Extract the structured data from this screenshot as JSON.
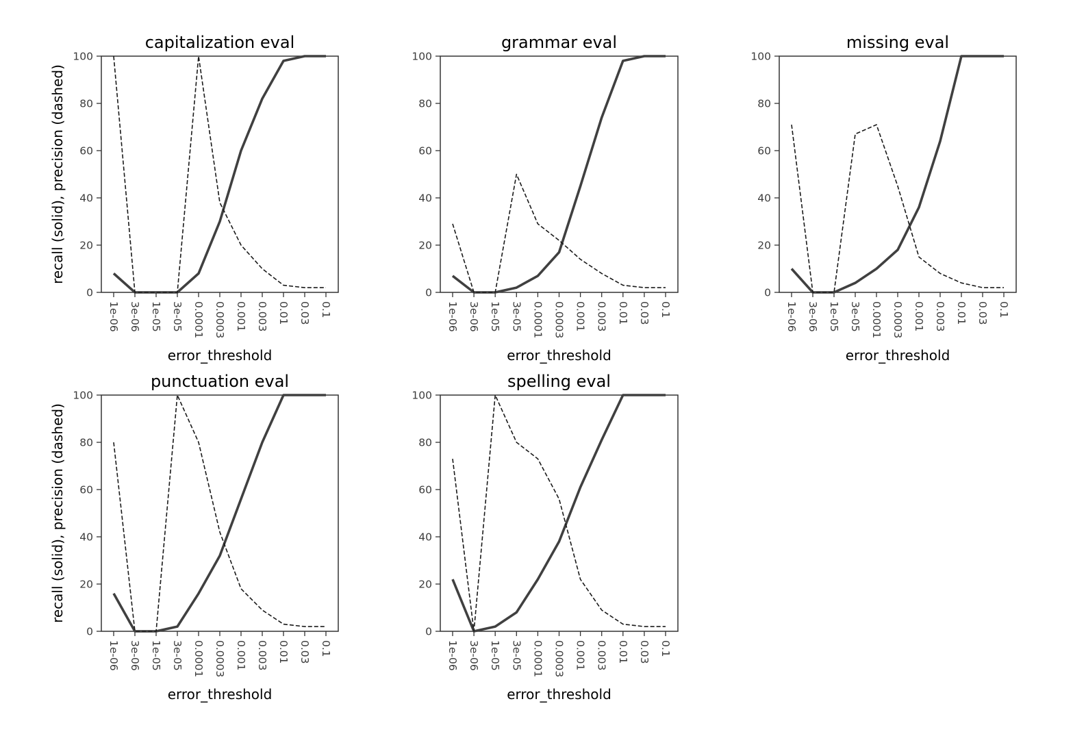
{
  "style": {
    "line_color": "#404040",
    "axis_color": "#333333",
    "tick_text_color": "#3d3d3d",
    "background": "#ffffff"
  },
  "chart_data": [
    {
      "type": "line",
      "title": "capitalization eval",
      "xlabel": "error_threshold",
      "ylabel": "recall (solid), precision (dashed)",
      "categories": [
        "1e-06",
        "3e-06",
        "1e-05",
        "3e-05",
        "0.0001",
        "0.0003",
        "0.001",
        "0.003",
        "0.01",
        "0.03",
        "0.1"
      ],
      "yticks": [
        0,
        20,
        40,
        60,
        80,
        100
      ],
      "ylim": [
        0,
        100
      ],
      "grid": false,
      "series": [
        {
          "style": "solid",
          "values": [
            8,
            0,
            0,
            0,
            8,
            30,
            60,
            82,
            98,
            100,
            100
          ]
        },
        {
          "style": "dashed",
          "values": [
            100,
            0,
            0,
            0,
            100,
            38,
            20,
            10,
            3,
            2,
            2
          ]
        }
      ]
    },
    {
      "type": "line",
      "title": "grammar eval",
      "xlabel": "error_threshold",
      "ylabel": "",
      "categories": [
        "1e-06",
        "3e-06",
        "1e-05",
        "3e-05",
        "0.0001",
        "0.0003",
        "0.001",
        "0.003",
        "0.01",
        "0.03",
        "0.1"
      ],
      "yticks": [
        0,
        20,
        40,
        60,
        80,
        100
      ],
      "ylim": [
        0,
        100
      ],
      "grid": false,
      "series": [
        {
          "style": "solid",
          "values": [
            7,
            0,
            0,
            2,
            7,
            17,
            45,
            74,
            98,
            100,
            100
          ]
        },
        {
          "style": "dashed",
          "values": [
            29,
            0,
            0,
            50,
            29,
            22,
            14,
            8,
            3,
            2,
            2
          ]
        }
      ]
    },
    {
      "type": "line",
      "title": "missing eval",
      "xlabel": "error_threshold",
      "ylabel": "",
      "categories": [
        "1e-06",
        "3e-06",
        "1e-05",
        "3e-05",
        "0.0001",
        "0.0003",
        "0.001",
        "0.003",
        "0.01",
        "0.03",
        "0.1"
      ],
      "yticks": [
        0,
        20,
        40,
        60,
        80,
        100
      ],
      "ylim": [
        0,
        100
      ],
      "grid": false,
      "series": [
        {
          "style": "solid",
          "values": [
            10,
            0,
            0,
            4,
            10,
            18,
            36,
            64,
            100,
            100,
            100
          ]
        },
        {
          "style": "dashed",
          "values": [
            71,
            0,
            0,
            67,
            71,
            45,
            15,
            8,
            4,
            2,
            2
          ]
        }
      ]
    },
    {
      "type": "line",
      "title": "punctuation eval",
      "xlabel": "error_threshold",
      "ylabel": "recall (solid), precision (dashed)",
      "categories": [
        "1e-06",
        "3e-06",
        "1e-05",
        "3e-05",
        "0.0001",
        "0.0003",
        "0.001",
        "0.003",
        "0.01",
        "0.03",
        "0.1"
      ],
      "yticks": [
        0,
        20,
        40,
        60,
        80,
        100
      ],
      "ylim": [
        0,
        100
      ],
      "grid": false,
      "series": [
        {
          "style": "solid",
          "values": [
            16,
            0,
            0,
            2,
            16,
            32,
            56,
            80,
            100,
            100,
            100
          ]
        },
        {
          "style": "dashed",
          "values": [
            80,
            0,
            0,
            100,
            80,
            42,
            18,
            9,
            3,
            2,
            2
          ]
        }
      ]
    },
    {
      "type": "line",
      "title": "spelling eval",
      "xlabel": "error_threshold",
      "ylabel": "",
      "categories": [
        "1e-06",
        "3e-06",
        "1e-05",
        "3e-05",
        "0.0001",
        "0.0003",
        "0.001",
        "0.003",
        "0.01",
        "0.03",
        "0.1"
      ],
      "yticks": [
        0,
        20,
        40,
        60,
        80,
        100
      ],
      "ylim": [
        0,
        100
      ],
      "grid": false,
      "series": [
        {
          "style": "solid",
          "values": [
            22,
            0,
            2,
            8,
            22,
            38,
            61,
            81,
            100,
            100,
            100
          ]
        },
        {
          "style": "dashed",
          "values": [
            73,
            0,
            100,
            80,
            73,
            56,
            22,
            9,
            3,
            2,
            2
          ]
        }
      ]
    }
  ]
}
